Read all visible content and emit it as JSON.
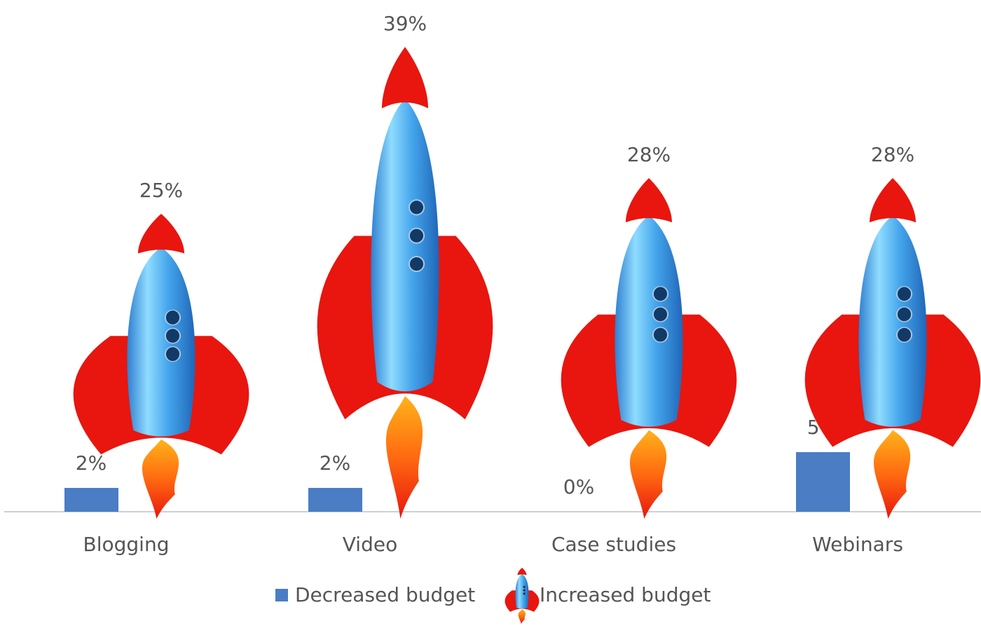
{
  "chart_data": {
    "type": "bar",
    "categories": [
      "Blogging",
      "Video",
      "Case studies",
      "Webinars"
    ],
    "series": [
      {
        "name": "Decreased budget",
        "color": "#4a7dc4",
        "values": [
          2,
          2,
          0,
          5
        ],
        "value_labels": [
          "2%",
          "2%",
          "0%",
          "5%"
        ]
      },
      {
        "name": "Increased budget",
        "color": "#e8160e",
        "marker": "rocket",
        "values": [
          25,
          39,
          28,
          28
        ],
        "value_labels": [
          "25%",
          "39%",
          "28%",
          "28%"
        ]
      }
    ]
  }
}
